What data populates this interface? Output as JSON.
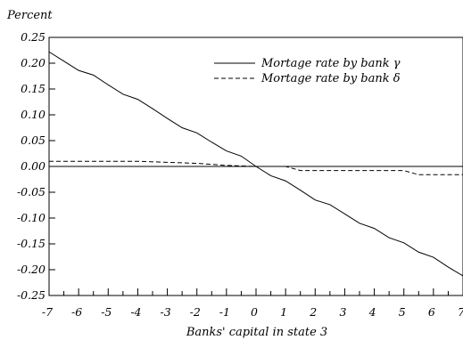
{
  "chart_data": {
    "type": "line",
    "ylabel": "Percent",
    "xlabel": "Banks' capital in state 3",
    "xlim": [
      -7,
      7
    ],
    "ylim": [
      -0.25,
      0.25
    ],
    "x_ticks": [
      -7,
      -6,
      -5,
      -4,
      -3,
      -2,
      -1,
      0,
      1,
      2,
      3,
      4,
      5,
      6,
      7
    ],
    "x_tick_labels": [
      "-7",
      "-6",
      "-5",
      "-4",
      "-3",
      "-2",
      "-1",
      "0",
      "1",
      "2",
      "3",
      "4",
      "5",
      "6",
      "7"
    ],
    "y_ticks": [
      0.25,
      0.2,
      0.15,
      0.1,
      0.05,
      0,
      -0.05,
      -0.1,
      -0.15,
      -0.2,
      -0.25
    ],
    "y_tick_labels": [
      "0.25",
      "0.20",
      "0.15",
      "0.10",
      "0.05",
      "0.00",
      "-0.05",
      "-0.10",
      "-0.15",
      "-0.20",
      "-0.25"
    ],
    "zero_line": true,
    "grid": false,
    "legend_position": "top-right",
    "series": [
      {
        "name": "Mortage rate by bank γ",
        "style": "solid",
        "color": "#000000",
        "x": [
          -7,
          -6.5,
          -6,
          -5.5,
          -5,
          -4.5,
          -4,
          -3.5,
          -3,
          -2.5,
          -2,
          -1.5,
          -1,
          -0.5,
          0,
          0.5,
          1,
          1.5,
          2,
          2.5,
          3,
          3.5,
          4,
          4.5,
          5,
          5.5,
          6,
          6.5,
          7
        ],
        "y": [
          0.222,
          0.204,
          0.186,
          0.177,
          0.158,
          0.14,
          0.13,
          0.112,
          0.093,
          0.075,
          0.065,
          0.047,
          0.03,
          0.02,
          0,
          -0.018,
          -0.028,
          -0.046,
          -0.065,
          -0.074,
          -0.092,
          -0.11,
          -0.12,
          -0.138,
          -0.148,
          -0.166,
          -0.176,
          -0.195,
          -0.212
        ]
      },
      {
        "name": "Mortage rate by bank δ",
        "style": "dashed",
        "color": "#000000",
        "x": [
          -7,
          -6,
          -5,
          -4,
          -3,
          -2,
          -1.5,
          -1,
          0,
          1,
          1.5,
          2,
          3,
          4,
          5,
          5.5,
          6,
          7
        ],
        "y": [
          0.01,
          0.01,
          0.01,
          0.01,
          0.008,
          0.006,
          0.004,
          0.002,
          0,
          0,
          -0.008,
          -0.008,
          -0.008,
          -0.008,
          -0.008,
          -0.016,
          -0.016,
          -0.016
        ]
      }
    ]
  }
}
